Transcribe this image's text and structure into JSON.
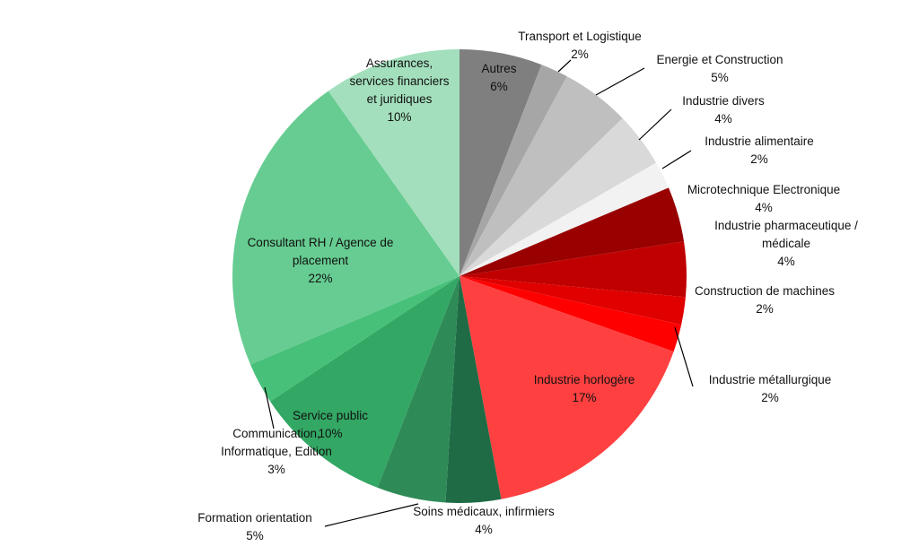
{
  "chart_data": {
    "type": "pie",
    "start": "top",
    "direction": "clockwise",
    "slices": [
      {
        "label": "Autres",
        "value_label": "6%",
        "value": 6,
        "color": "#7f7f7f"
      },
      {
        "label": "Transport et Logistique",
        "value_label": "2%",
        "value": 2,
        "color": "#a6a6a6"
      },
      {
        "label": "Energie et Construction",
        "value_label": "5%",
        "value": 5,
        "color": "#bfbfbf"
      },
      {
        "label": "Industrie divers",
        "value_label": "4%",
        "value": 4,
        "color": "#d9d9d9"
      },
      {
        "label": "Industrie alimentaire",
        "value_label": "2%",
        "value": 2,
        "color": "#f2f2f2"
      },
      {
        "label": "Microtechnique Electronique",
        "value_label": "4%",
        "value": 4,
        "color": "#990000"
      },
      {
        "label": "Industrie pharmaceutique / médicale",
        "value_label": "4%",
        "value": 4,
        "color": "#c00000"
      },
      {
        "label": "Construction de machines",
        "value_label": "2%",
        "value": 2,
        "color": "#e00000"
      },
      {
        "label": "Industrie métallurgique",
        "value_label": "2%",
        "value": 2,
        "color": "#ff0000"
      },
      {
        "label": "Industrie horlogère",
        "value_label": "17%",
        "value": 17,
        "color": "#ff4040"
      },
      {
        "label": "Soins médicaux, infirmiers",
        "value_label": "4%",
        "value": 4,
        "color": "#1e6b45"
      },
      {
        "label": "Formation orientation",
        "value_label": "5%",
        "value": 5,
        "color": "#2e8b57"
      },
      {
        "label": "Service public",
        "value_label": "10%",
        "value": 10,
        "color": "#33a764"
      },
      {
        "label": "Communication, Informatique, Edition",
        "value_label": "3%",
        "value": 3,
        "color": "#47c07a"
      },
      {
        "label": "Consultant RH / Agence de placement",
        "value_label": "22%",
        "value": 22,
        "color": "#66cc91"
      },
      {
        "label": "Assurances, services financiers et juridiques",
        "value_label": "10%",
        "value": 10,
        "color": "#a3dfbc"
      }
    ]
  }
}
